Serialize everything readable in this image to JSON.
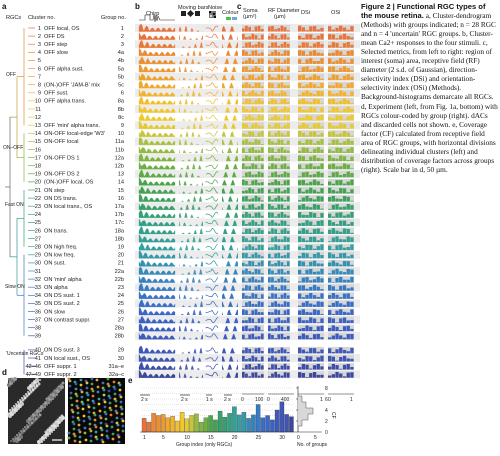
{
  "caption": {
    "title": "Figure 2 | Functional RGC types of the mouse retina.",
    "body": " a, Cluster-dendrogram (Methods) with groups indicated; n = 28 RGC and n = 4 'uncertain' RGC groups. b, Cluster-mean Ca2+ responses to the four stimuli. c, Selected metrics, from left to right: region of interest (soma) area, receptive field (RF) diameter (2 s.d. of Gaussian), direction-selectivity index (DSi) and orientation-selectivity index (OSi) (Methods). Background-histograms demarcate all RGCs. d, Experiment (left, from Fig. 1a, bottom) with RGCs colour-coded by group (right). dACs and discarded cells not shown. e, Coverage factor (CF) calculated from receptive field area of RGC groups, with horizontal divisions delineating individual clusters (left) and distribution of coverage factors across groups (right). Scale bar in d, 50 µm."
  },
  "panels": {
    "a": "a",
    "b": "b",
    "c": "c",
    "d": "d",
    "e": "e"
  },
  "header": {
    "rgcs": "RGCs",
    "cluster_no": "Cluster no.",
    "group_no": "Group no.",
    "chirp": "Chirp",
    "moving_bars": "Moving bars",
    "noise": "Noise",
    "colour": "Colour",
    "soma": "Soma",
    "soma_unit": "(µm²)",
    "rf_diameter": "RF Diameter",
    "rf_unit": "(µm)",
    "dsi": "DSi",
    "osi": "OSi"
  },
  "tree_labels": {
    "off": "OFF",
    "on_off": "ON–OFF",
    "fast_on": "Fast ON",
    "slow_on": "Slow ON",
    "uncertain": "'Uncertain RGCs'"
  },
  "clusters": [
    {
      "c": "1",
      "name": "OFF local, OS",
      "g": "1",
      "color": "#e9713b"
    },
    {
      "c": "2",
      "name": "OFF DS",
      "g": "2",
      "color": "#e7753a"
    },
    {
      "c": "3",
      "name": "OFF step",
      "g": "3",
      "color": "#e97a35"
    },
    {
      "c": "4",
      "name": "OFF slow",
      "g": "4a",
      "color": "#eb8a32"
    },
    {
      "c": "5",
      "name": "",
      "g": "4b",
      "color": "#ec8f31"
    },
    {
      "c": "6",
      "name": "OFF alpha sust.",
      "g": "5a",
      "color": "#ee9a30"
    },
    {
      "c": "7",
      "name": "",
      "g": "5b",
      "color": "#efa12f"
    },
    {
      "c": "8",
      "name": "(ON-)OFF 'JAM-B' mix",
      "g": "5c",
      "color": "#f0a82e"
    },
    {
      "c": "9",
      "name": "OFF sust.",
      "g": "6",
      "color": "#f2b42d"
    },
    {
      "c": "10",
      "name": "OFF alpha trans.",
      "g": "8a",
      "color": "#f2bf2c"
    },
    {
      "c": "11",
      "name": "",
      "g": "8b",
      "color": "#f1c52c"
    },
    {
      "c": "12",
      "name": "",
      "g": "8c",
      "color": "#eec92d"
    },
    {
      "c": "13",
      "name": "OFF 'mini' alpha trans.",
      "g": "9",
      "color": "#e4c930"
    },
    {
      "c": "14",
      "name": "ON-OFF local-edge 'W3'",
      "g": "10",
      "color": "#c9c53a"
    },
    {
      "c": "15",
      "name": "ON-OFF local",
      "g": "11a",
      "color": "#a6c13f"
    },
    {
      "c": "16",
      "name": "",
      "g": "11b",
      "color": "#93bb40"
    },
    {
      "c": "17",
      "name": "ON-OFF DS 1",
      "g": "12a",
      "color": "#7fb541"
    },
    {
      "c": "18",
      "name": "",
      "g": "12b",
      "color": "#6daf43"
    },
    {
      "c": "19",
      "name": "ON-OFF DS 2",
      "g": "13",
      "color": "#5daa46"
    },
    {
      "c": "20",
      "name": "(ON-)OFF local, OS",
      "g": "14",
      "color": "#4da54a"
    },
    {
      "c": "21",
      "name": "ON step",
      "g": "15",
      "color": "#44a352"
    },
    {
      "c": "22",
      "name": "ON DS trans.",
      "g": "16",
      "color": "#3ea25d"
    },
    {
      "c": "23",
      "name": "ON local trans., OS",
      "g": "17a",
      "color": "#38a169"
    },
    {
      "c": "24",
      "name": "",
      "g": "17b",
      "color": "#34a075"
    },
    {
      "c": "25",
      "name": "",
      "g": "17c",
      "color": "#33a081"
    },
    {
      "c": "26",
      "name": "ON trans.",
      "g": "18a",
      "color": "#33a08b"
    },
    {
      "c": "27",
      "name": "",
      "g": "18b",
      "color": "#34a095"
    },
    {
      "c": "28",
      "name": "ON high freq.",
      "g": "19",
      "color": "#35a0a0"
    },
    {
      "c": "29",
      "name": "ON low freq.",
      "g": "20",
      "color": "#3599aa"
    },
    {
      "c": "30",
      "name": "ON sust.",
      "g": "21",
      "color": "#3591b3"
    },
    {
      "c": "31",
      "name": "",
      "g": "22a",
      "color": "#3689b9"
    },
    {
      "c": "32",
      "name": "ON 'mini' alpha",
      "g": "22b",
      "color": "#3781bf"
    },
    {
      "c": "33",
      "name": "ON alpha",
      "g": "23",
      "color": "#387ac3"
    },
    {
      "c": "34",
      "name": "ON DS sust. 1",
      "g": "24",
      "color": "#3973c5"
    },
    {
      "c": "35",
      "name": "ON DS sust. 2",
      "g": "25",
      "color": "#3a6dc6"
    },
    {
      "c": "36",
      "name": "ON slow",
      "g": "26",
      "color": "#3b67c5"
    },
    {
      "c": "37",
      "name": "ON contrast suppr.",
      "g": "27",
      "color": "#3c62c3"
    },
    {
      "c": "38",
      "name": "",
      "g": "28a",
      "color": "#3d5ec0"
    },
    {
      "c": "39",
      "name": "",
      "g": "28b",
      "color": "#3e5bbc"
    },
    {
      "c": "40",
      "name": "ON DS sust. 3",
      "g": "29",
      "color": "#3f57b7"
    },
    {
      "c": "41",
      "name": "ON local sust., OS",
      "g": "30",
      "color": "#4054b1"
    },
    {
      "c": "42–46",
      "name": "OFF suppr. 1",
      "g": "31a–e",
      "color": "#3f4ea8"
    },
    {
      "c": "47–49",
      "name": "OFF suppr. 2",
      "g": "32a–c",
      "color": "#3c489c"
    }
  ],
  "scale": {
    "b_chirp": "2 s",
    "b_bars": "2 s",
    "b_noise": "1 s",
    "b_colour": "2 s",
    "soma_ticks": [
      "0",
      "100"
    ],
    "rf_ticks": [
      "0",
      "400"
    ],
    "dsi_ticks": [
      "0",
      "1"
    ],
    "osi_ticks": [
      "0",
      "1"
    ]
  },
  "panel_e": {
    "xlabel": "Group index (only RGCs)",
    "xticks": [
      "1",
      "5",
      "10",
      "15",
      "20",
      "25",
      "30"
    ],
    "ylabel": "CF",
    "yticks": [
      "0",
      "2",
      "4",
      "6",
      "8"
    ],
    "hist_xlabel": "No. of groups",
    "hist_xticks": [
      "0",
      "5"
    ]
  },
  "chart_data": {
    "type": "bar",
    "xlabel": "Group index (only RGCs)",
    "ylabel": "CF",
    "categories": [
      "1",
      "2",
      "3",
      "4",
      "5",
      "6",
      "7",
      "8",
      "9",
      "10",
      "11",
      "12",
      "13",
      "14",
      "15",
      "16",
      "17",
      "18",
      "19",
      "20",
      "21",
      "22",
      "23",
      "24",
      "25",
      "26",
      "27",
      "28",
      "29",
      "30",
      "31",
      "32"
    ],
    "values": [
      2.5,
      1.8,
      3.4,
      3.0,
      3.2,
      2.6,
      2.9,
      2.0,
      3.6,
      2.4,
      3.0,
      3.3,
      1.8,
      2.6,
      3.0,
      2.2,
      3.8,
      2.7,
      3.4,
      4.6,
      3.1,
      3.6,
      2.5,
      3.1,
      5.0,
      2.6,
      3.0,
      2.2,
      4.0,
      5.5,
      3.2,
      2.8
    ],
    "ylim": [
      0,
      8
    ]
  }
}
